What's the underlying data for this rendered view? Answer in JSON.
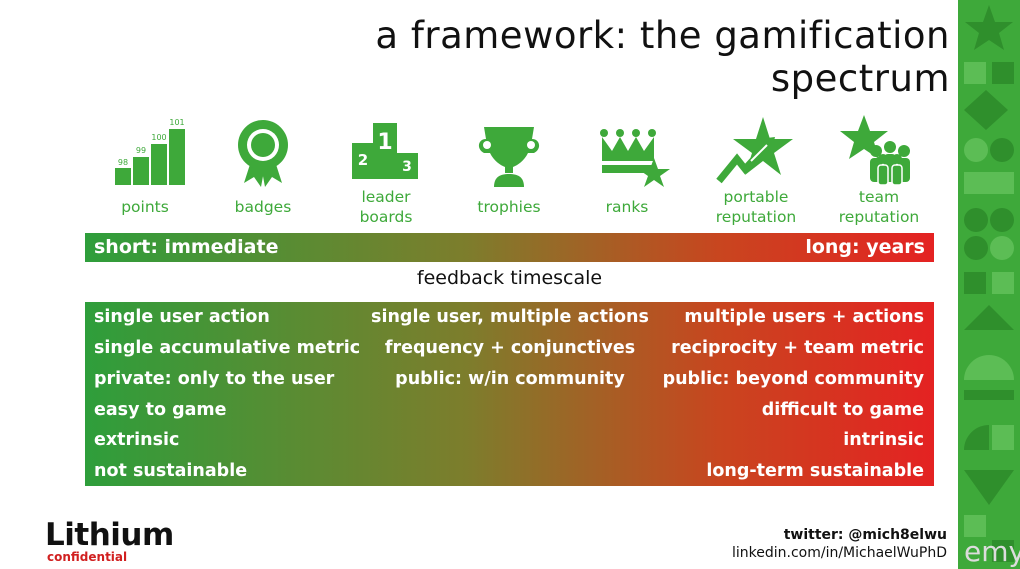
{
  "slide": {
    "title": "a framework: the gamification spectrum"
  },
  "icons": [
    {
      "label": "points",
      "icon": "points-bars-icon",
      "numbers": [
        "98",
        "99",
        "100",
        "101"
      ]
    },
    {
      "label": "badges",
      "icon": "badge-ribbon-icon"
    },
    {
      "label": "leader boards",
      "label_lines": [
        "leader",
        "boards"
      ],
      "icon": "podium-icon",
      "numbers": [
        "1",
        "2",
        "3"
      ]
    },
    {
      "label": "trophies",
      "icon": "trophy-icon"
    },
    {
      "label": "ranks",
      "icon": "crown-star-icon"
    },
    {
      "label": "portable reputation",
      "label_lines": [
        "portable",
        "reputation"
      ],
      "icon": "star-arrow-icon"
    },
    {
      "label": "team reputation",
      "label_lines": [
        "team",
        "reputation"
      ],
      "icon": "star-team-icon"
    }
  ],
  "timescale_bar": {
    "left": "short: immediate",
    "right": "long: years",
    "caption": "feedback timescale"
  },
  "rows": [
    {
      "left": "single user action",
      "middle": "single user, multiple actions",
      "right": "multiple users + actions"
    },
    {
      "left": "single accumulative metric",
      "middle": "frequency + conjunctives",
      "right": "reciprocity + team metric"
    },
    {
      "left": "private: only to the user",
      "middle": "public: w/in community",
      "right": "public: beyond community"
    },
    {
      "left": "easy to game",
      "middle": "",
      "right": "difficult to game"
    },
    {
      "left": "extrinsic",
      "middle": "",
      "right": "intrinsic"
    },
    {
      "left": "not sustainable",
      "middle": "",
      "right": "long-term sustainable"
    }
  ],
  "footer": {
    "logo": "Lithium",
    "logo_sub": "confidential",
    "twitter": "twitter: @mich8elwu",
    "linkedin": "linkedin.com/in/MichaelWuPhD",
    "watermark": "emy"
  },
  "colors": {
    "green": "#3ea93a",
    "red": "#e42222",
    "gradient_start": "#2e9e3b",
    "gradient_end": "#e42222"
  }
}
